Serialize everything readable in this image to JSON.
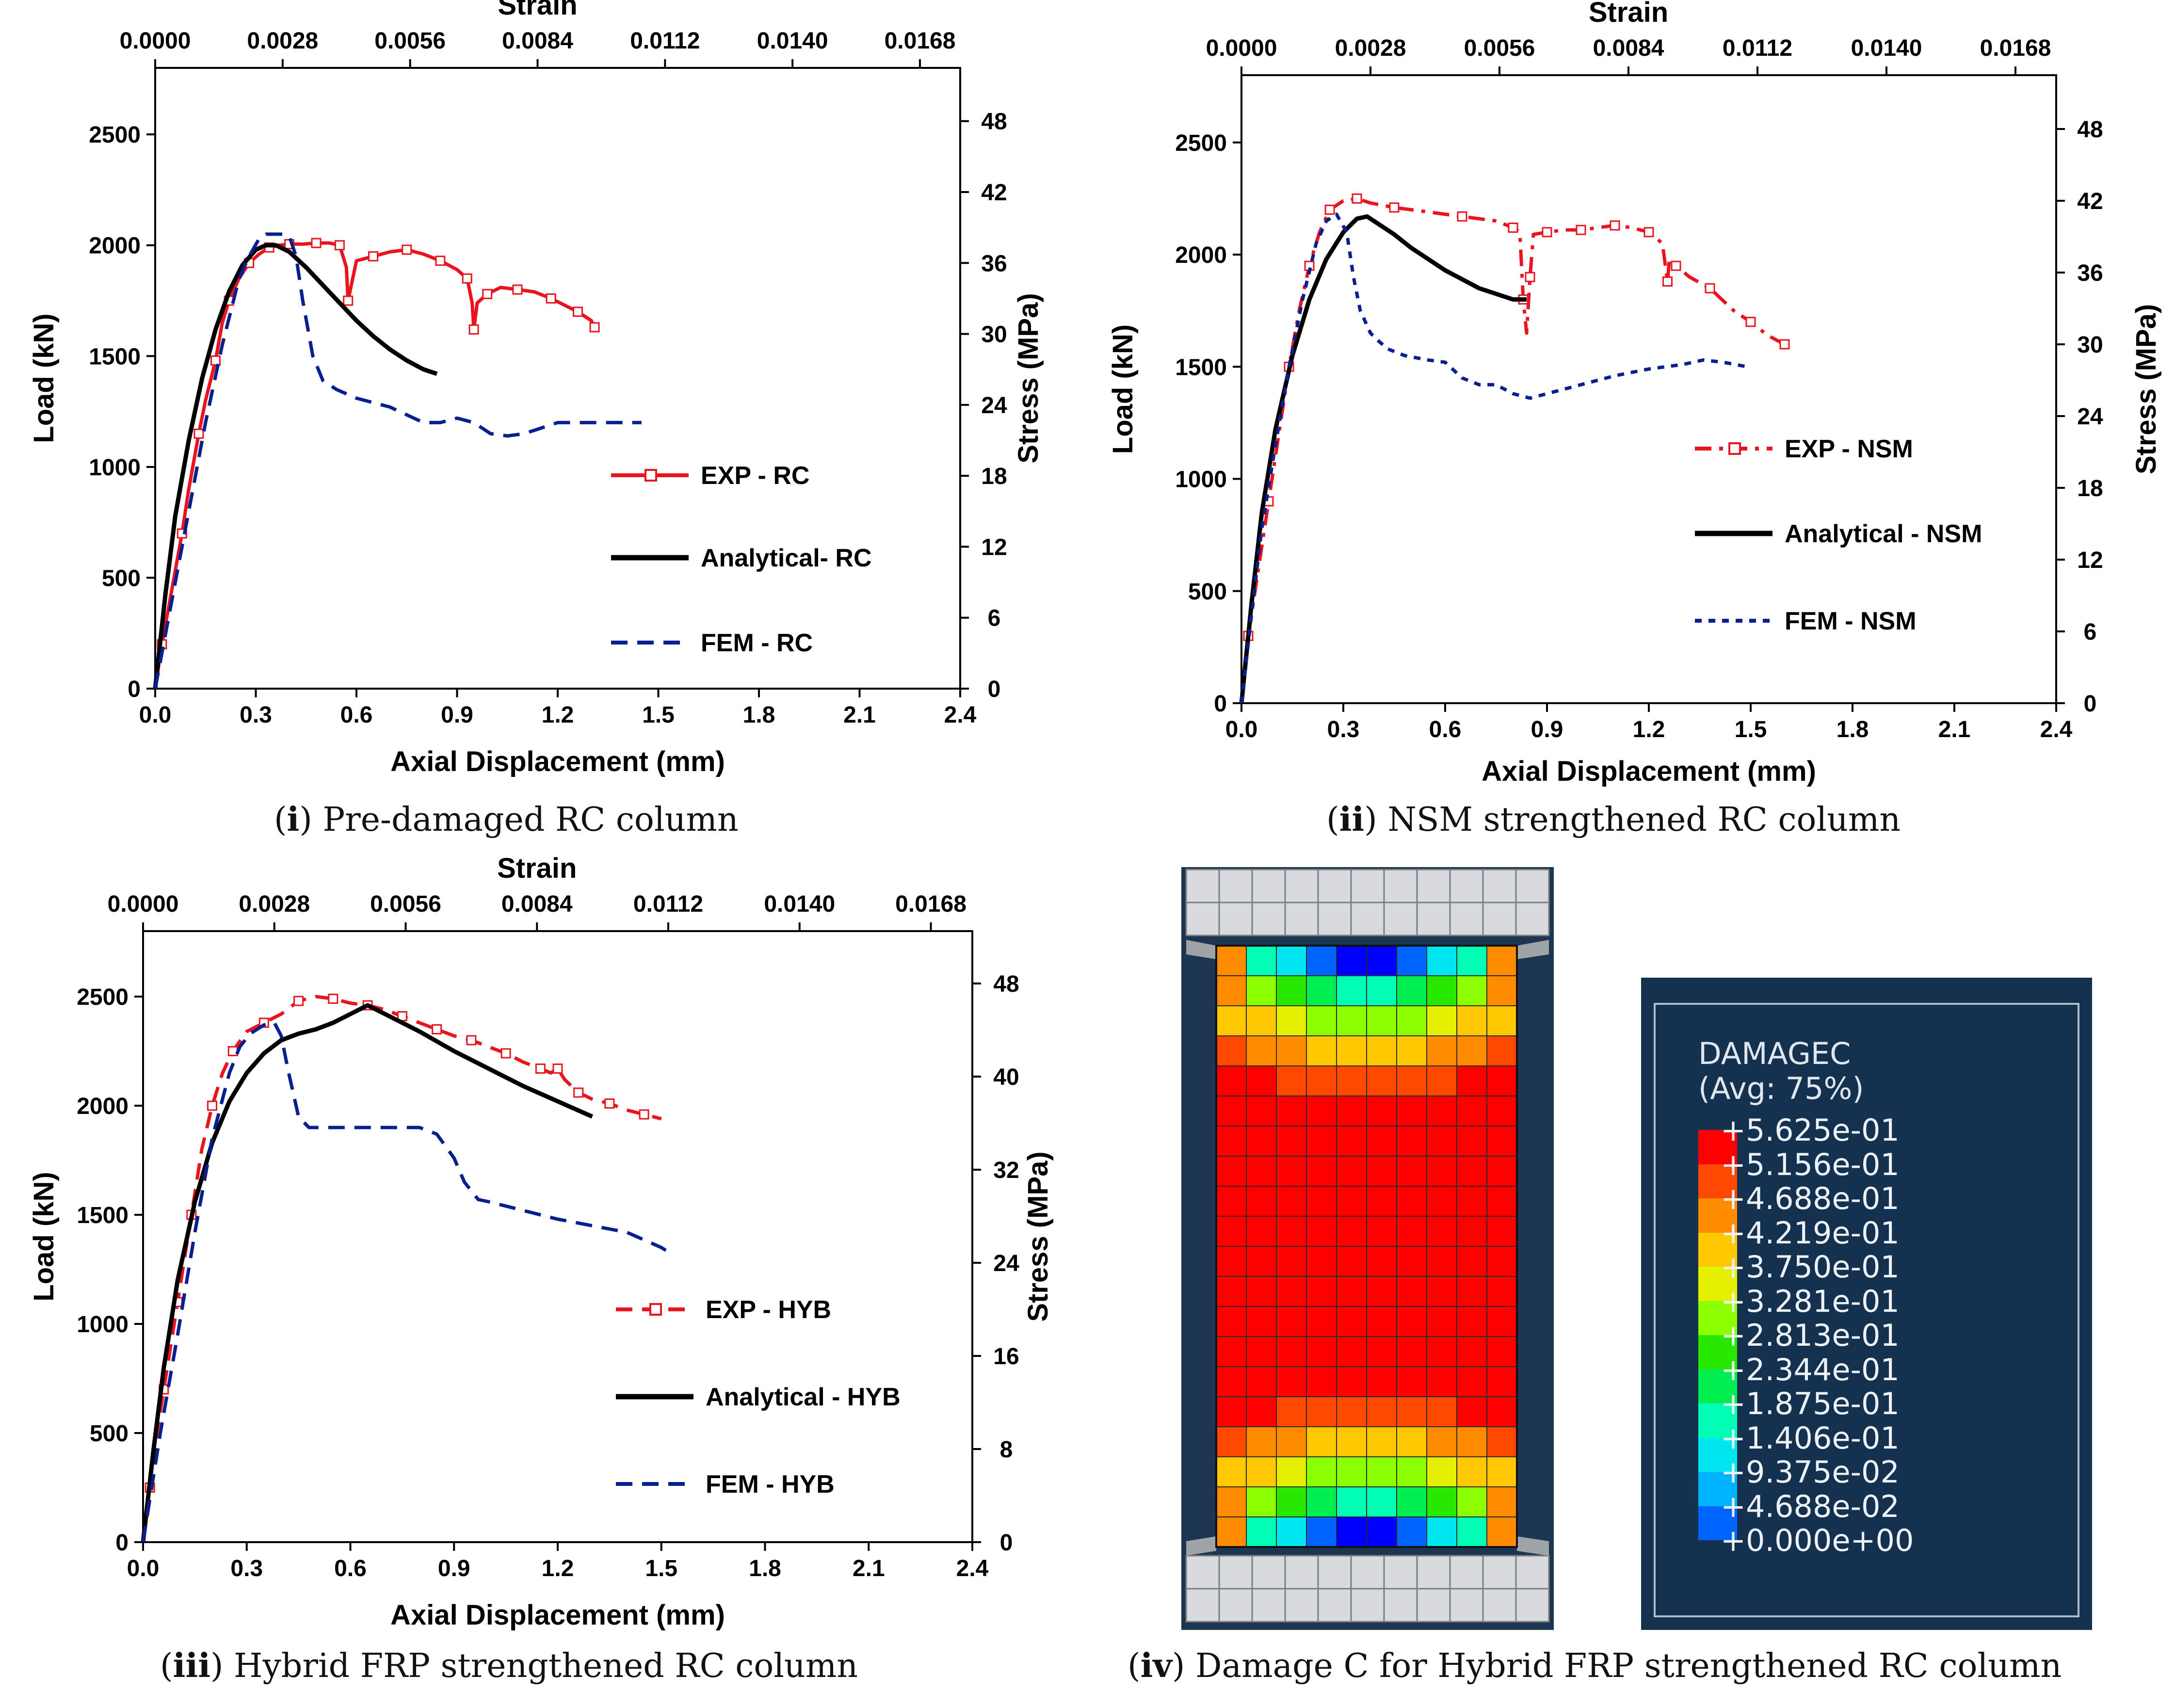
{
  "chart_data": [
    {
      "type": "line",
      "id": "p1",
      "top_axis_title": "Strain",
      "xlabel": "Axial Displacement (mm)",
      "ylabel": "Load (kN)",
      "y2label": "Stress (MPa)",
      "caption_num": "i",
      "caption_text": " Pre-damaged RC column",
      "xlim": [
        0,
        2.4
      ],
      "ylim": [
        0,
        2800
      ],
      "y2lim": [
        0,
        52.5
      ],
      "xticks": [
        0.0,
        0.3,
        0.6,
        0.9,
        1.2,
        1.5,
        1.8,
        2.1,
        2.4
      ],
      "xtick_labels": [
        "0.0",
        "0.3",
        "0.6",
        "0.9",
        "1.2",
        "1.5",
        "1.8",
        "2.1",
        "2.4"
      ],
      "yticks": [
        0,
        500,
        1000,
        1500,
        2000,
        2500
      ],
      "ytick_labels": [
        "0",
        "500",
        "1000",
        "1500",
        "2000",
        "2500"
      ],
      "y2ticks": [
        0,
        6,
        12,
        18,
        24,
        30,
        36,
        42,
        48
      ],
      "y2tick_labels": [
        "0",
        "6",
        "12",
        "18",
        "24",
        "30",
        "36",
        "42",
        "48"
      ],
      "strain_ticks": [
        "0.0000",
        "0.0028",
        "0.0056",
        "0.0084",
        "0.0112",
        "0.0140",
        "0.0168"
      ],
      "series": [
        {
          "name": "EXP - RC",
          "color": "#e8141e",
          "dash": "none",
          "marker": true,
          "x": [
            0.0,
            0.02,
            0.05,
            0.08,
            0.1,
            0.13,
            0.15,
            0.18,
            0.2,
            0.22,
            0.25,
            0.28,
            0.31,
            0.34,
            0.37,
            0.4,
            0.44,
            0.48,
            0.52,
            0.55,
            0.57,
            0.575,
            0.6,
            0.65,
            0.7,
            0.75,
            0.8,
            0.85,
            0.9,
            0.93,
            0.945,
            0.95,
            0.96,
            0.99,
            1.03,
            1.08,
            1.13,
            1.18,
            1.22,
            1.26,
            1.3,
            1.31
          ],
          "y": [
            0,
            200,
            450,
            700,
            900,
            1150,
            1300,
            1480,
            1650,
            1750,
            1850,
            1920,
            1960,
            1990,
            2000,
            2005,
            2005,
            2010,
            2010,
            2000,
            1900,
            1750,
            1930,
            1950,
            1970,
            1980,
            1960,
            1930,
            1890,
            1850,
            1740,
            1620,
            1740,
            1780,
            1810,
            1800,
            1790,
            1760,
            1730,
            1700,
            1660,
            1630
          ]
        },
        {
          "name": "Analytical- RC",
          "color": "#000000",
          "dash": "none",
          "marker": false,
          "x": [
            0.0,
            0.03,
            0.06,
            0.1,
            0.14,
            0.18,
            0.22,
            0.26,
            0.3,
            0.33,
            0.36,
            0.4,
            0.45,
            0.5,
            0.55,
            0.6,
            0.65,
            0.7,
            0.75,
            0.8,
            0.84
          ],
          "y": [
            0,
            420,
            780,
            1120,
            1400,
            1620,
            1790,
            1910,
            1980,
            2000,
            2000,
            1970,
            1900,
            1820,
            1740,
            1660,
            1590,
            1530,
            1480,
            1440,
            1420
          ]
        },
        {
          "name": "FEM - RC",
          "color": "#0a1f8f",
          "dash": "dash",
          "marker": false,
          "x": [
            0.0,
            0.05,
            0.1,
            0.15,
            0.2,
            0.25,
            0.28,
            0.31,
            0.33,
            0.36,
            0.38,
            0.4,
            0.42,
            0.44,
            0.47,
            0.5,
            0.54,
            0.6,
            0.7,
            0.8,
            0.85,
            0.9,
            0.95,
            1.0,
            1.05,
            1.1,
            1.2,
            1.3,
            1.45
          ],
          "y": [
            0,
            400,
            800,
            1200,
            1550,
            1850,
            1950,
            2030,
            2050,
            2050,
            2050,
            2040,
            1950,
            1750,
            1500,
            1390,
            1350,
            1310,
            1270,
            1200,
            1200,
            1220,
            1200,
            1150,
            1140,
            1150,
            1200,
            1200,
            1200
          ]
        }
      ]
    },
    {
      "type": "line",
      "id": "p2",
      "top_axis_title": "Strain",
      "xlabel": "Axial Displacement (mm)",
      "ylabel": "Load (kN)",
      "y2label": "Stress (MPa)",
      "caption_num": "ii",
      "caption_text": " NSM strengthened RC column",
      "xlim": [
        0,
        2.4
      ],
      "ylim": [
        0,
        2800
      ],
      "y2lim": [
        0,
        52.5
      ],
      "xticks": [
        0.0,
        0.3,
        0.6,
        0.9,
        1.2,
        1.5,
        1.8,
        2.1,
        2.4
      ],
      "xtick_labels": [
        "0.0",
        "0.3",
        "0.6",
        "0.9",
        "1.2",
        "1.5",
        "1.8",
        "2.1",
        "2.4"
      ],
      "yticks": [
        0,
        500,
        1000,
        1500,
        2000,
        2500
      ],
      "ytick_labels": [
        "0",
        "500",
        "1000",
        "1500",
        "2000",
        "2500"
      ],
      "y2ticks": [
        0,
        6,
        12,
        18,
        24,
        30,
        36,
        42,
        48
      ],
      "y2tick_labels": [
        "0",
        "6",
        "12",
        "18",
        "24",
        "30",
        "36",
        "42",
        "48"
      ],
      "strain_ticks": [
        "0.0000",
        "0.0028",
        "0.0056",
        "0.0084",
        "0.0112",
        "0.0140",
        "0.0168"
      ],
      "series": [
        {
          "name": "EXP - NSM",
          "color": "#e8141e",
          "dash": "dashdot",
          "marker": true,
          "x": [
            0.0,
            0.02,
            0.05,
            0.08,
            0.11,
            0.14,
            0.17,
            0.2,
            0.23,
            0.26,
            0.3,
            0.34,
            0.38,
            0.45,
            0.55,
            0.65,
            0.75,
            0.8,
            0.82,
            0.83,
            0.84,
            0.85,
            0.86,
            0.9,
            0.95,
            1.0,
            1.05,
            1.1,
            1.15,
            1.2,
            1.24,
            1.255,
            1.26,
            1.28,
            1.32,
            1.38,
            1.45,
            1.5,
            1.55,
            1.6
          ],
          "y": [
            0,
            300,
            600,
            900,
            1200,
            1500,
            1750,
            1950,
            2100,
            2200,
            2240,
            2250,
            2230,
            2210,
            2190,
            2170,
            2150,
            2120,
            2100,
            1800,
            1650,
            1900,
            2090,
            2100,
            2110,
            2110,
            2120,
            2130,
            2120,
            2100,
            2050,
            1880,
            1970,
            1950,
            1900,
            1850,
            1750,
            1700,
            1640,
            1600
          ]
        },
        {
          "name": "Analytical - NSM",
          "color": "#000000",
          "dash": "none",
          "marker": false,
          "x": [
            0.0,
            0.03,
            0.06,
            0.1,
            0.15,
            0.2,
            0.25,
            0.3,
            0.34,
            0.37,
            0.4,
            0.45,
            0.5,
            0.6,
            0.7,
            0.8,
            0.84
          ],
          "y": [
            0,
            450,
            850,
            1220,
            1550,
            1800,
            1980,
            2100,
            2160,
            2170,
            2140,
            2090,
            2030,
            1930,
            1850,
            1800,
            1800
          ]
        },
        {
          "name": "FEM - NSM",
          "color": "#0a1f8f",
          "dash": "dot",
          "marker": false,
          "x": [
            0.0,
            0.03,
            0.06,
            0.1,
            0.14,
            0.18,
            0.22,
            0.25,
            0.28,
            0.31,
            0.33,
            0.35,
            0.38,
            0.4,
            0.43,
            0.48,
            0.55,
            0.6,
            0.65,
            0.7,
            0.75,
            0.8,
            0.85,
            0.9,
            1.0,
            1.1,
            1.2,
            1.3,
            1.36,
            1.42,
            1.49
          ],
          "y": [
            0,
            400,
            780,
            1150,
            1500,
            1800,
            2050,
            2150,
            2180,
            2100,
            1900,
            1750,
            1650,
            1620,
            1580,
            1550,
            1530,
            1520,
            1450,
            1420,
            1420,
            1380,
            1360,
            1380,
            1420,
            1460,
            1490,
            1510,
            1530,
            1520,
            1500
          ]
        }
      ]
    },
    {
      "type": "line",
      "id": "p3",
      "top_axis_title": "Strain",
      "xlabel": "Axial Displacement (mm)",
      "ylabel": "Load (kN)",
      "y2label": "Stress (MPa)",
      "caption_num": "iii",
      "caption_text": " Hybrid FRP strengthened RC column",
      "xlim": [
        0,
        2.4
      ],
      "ylim": [
        0,
        2800
      ],
      "y2lim": [
        0,
        52.5
      ],
      "xticks": [
        0.0,
        0.3,
        0.6,
        0.9,
        1.2,
        1.5,
        1.8,
        2.1,
        2.4
      ],
      "xtick_labels": [
        "0.0",
        "0.3",
        "0.6",
        "0.9",
        "1.2",
        "1.5",
        "1.8",
        "2.1",
        "2.4"
      ],
      "yticks": [
        0,
        500,
        1000,
        1500,
        2000,
        2500
      ],
      "ytick_labels": [
        "0",
        "500",
        "1000",
        "1500",
        "2000",
        "2500"
      ],
      "y2ticks": [
        0,
        8,
        16,
        24,
        32,
        40,
        48
      ],
      "y2tick_labels": [
        "0",
        "8",
        "16",
        "24",
        "32",
        "40",
        "48"
      ],
      "strain_ticks": [
        "0.0000",
        "0.0028",
        "0.0056",
        "0.0084",
        "0.0112",
        "0.0140",
        "0.0168"
      ],
      "series": [
        {
          "name": "EXP - HYB",
          "color": "#e8141e",
          "dash": "dash",
          "marker": true,
          "x": [
            0.0,
            0.02,
            0.04,
            0.06,
            0.08,
            0.1,
            0.12,
            0.14,
            0.17,
            0.2,
            0.23,
            0.26,
            0.3,
            0.35,
            0.4,
            0.45,
            0.5,
            0.55,
            0.6,
            0.65,
            0.7,
            0.75,
            0.8,
            0.85,
            0.9,
            0.95,
            1.0,
            1.05,
            1.1,
            1.15,
            1.18,
            1.2,
            1.22,
            1.26,
            1.3,
            1.35,
            1.4,
            1.45,
            1.5
          ],
          "y": [
            0,
            250,
            500,
            700,
            900,
            1100,
            1300,
            1500,
            1800,
            2000,
            2150,
            2250,
            2340,
            2380,
            2420,
            2480,
            2500,
            2490,
            2470,
            2460,
            2440,
            2410,
            2380,
            2350,
            2320,
            2300,
            2270,
            2240,
            2200,
            2170,
            2150,
            2170,
            2120,
            2060,
            2030,
            2010,
            1980,
            1960,
            1940
          ]
        },
        {
          "name": "Analytical - HYB",
          "color": "#000000",
          "dash": "none",
          "marker": false,
          "x": [
            0.0,
            0.03,
            0.06,
            0.1,
            0.15,
            0.2,
            0.25,
            0.3,
            0.35,
            0.4,
            0.45,
            0.5,
            0.55,
            0.6,
            0.65,
            0.7,
            0.8,
            0.9,
            1.0,
            1.1,
            1.2,
            1.3
          ],
          "y": [
            0,
            420,
            800,
            1200,
            1560,
            1830,
            2020,
            2150,
            2240,
            2300,
            2330,
            2350,
            2380,
            2420,
            2460,
            2420,
            2340,
            2250,
            2170,
            2090,
            2020,
            1950
          ]
        },
        {
          "name": "FEM - HYB",
          "color": "#0a1f8f",
          "dash": "dash",
          "marker": false,
          "x": [
            0.0,
            0.05,
            0.1,
            0.15,
            0.2,
            0.25,
            0.28,
            0.31,
            0.35,
            0.38,
            0.4,
            0.42,
            0.45,
            0.48,
            0.55,
            0.6,
            0.7,
            0.8,
            0.85,
            0.9,
            0.93,
            0.97,
            1.0,
            1.1,
            1.2,
            1.3,
            1.4,
            1.5,
            1.52
          ],
          "y": [
            0,
            500,
            950,
            1420,
            1850,
            2150,
            2270,
            2330,
            2370,
            2380,
            2320,
            2160,
            1950,
            1900,
            1900,
            1900,
            1900,
            1900,
            1870,
            1760,
            1650,
            1570,
            1560,
            1520,
            1480,
            1450,
            1420,
            1350,
            1330
          ]
        }
      ]
    }
  ],
  "damage": {
    "caption_num": "iv",
    "caption_text": " Damage C for Hybrid FRP strengthened RC column",
    "legend_title": "DAMAGEC",
    "legend_subtitle": "(Avg: 75%)",
    "levels": [
      {
        "label": "+5.625e-01",
        "color": "#ff0000"
      },
      {
        "label": "+5.156e-01",
        "color": "#ff4800"
      },
      {
        "label": "+4.688e-01",
        "color": "#ff8c00"
      },
      {
        "label": "+4.219e-01",
        "color": "#ffc800"
      },
      {
        "label": "+3.750e-01",
        "color": "#e4f000"
      },
      {
        "label": "+3.281e-01",
        "color": "#8cff00"
      },
      {
        "label": "+2.813e-01",
        "color": "#28e800"
      },
      {
        "label": "+2.344e-01",
        "color": "#00ee50"
      },
      {
        "label": "+1.875e-01",
        "color": "#00ffb4"
      },
      {
        "label": "+1.406e-01",
        "color": "#00e6f0"
      },
      {
        "label": "+9.375e-02",
        "color": "#00b4ff"
      },
      {
        "label": "+4.688e-02",
        "color": "#0064ff"
      },
      {
        "label": "+0.000e+00",
        "color": "#0000ff"
      }
    ]
  }
}
